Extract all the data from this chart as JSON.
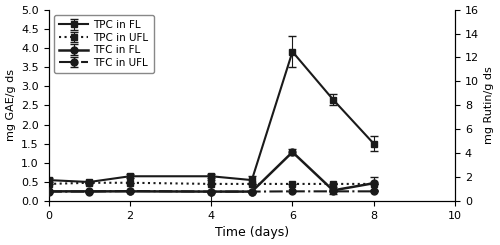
{
  "x_days": [
    0,
    1,
    2,
    4,
    5,
    6,
    7,
    8
  ],
  "tpc_fl": [
    0.55,
    0.5,
    0.65,
    0.65,
    0.55,
    3.9,
    2.65,
    1.5
  ],
  "tpc_fl_err": [
    0.05,
    0.02,
    0.05,
    0.05,
    0.1,
    0.4,
    0.15,
    0.2
  ],
  "tpc_ufl": [
    0.45,
    0.48,
    0.48,
    0.45,
    0.45,
    0.45,
    0.45,
    0.45
  ],
  "tpc_ufl_err": [
    0.0,
    0.0,
    0.0,
    0.0,
    0.0,
    0.0,
    0.0,
    0.0
  ],
  "tfc_fl_left": [
    0.82,
    0.82,
    0.82,
    0.8,
    0.8,
    4.1,
    0.9,
    1.5
  ],
  "tfc_fl_err_left": [
    0.0,
    0.0,
    0.0,
    1.0,
    0.05,
    0.25,
    0.3,
    0.55
  ],
  "tfc_ufl_left": [
    0.8,
    0.8,
    0.85,
    0.8,
    0.8,
    0.82,
    0.82,
    0.82
  ],
  "tfc_ufl_err_left": [
    0.0,
    0.0,
    0.0,
    0.0,
    0.0,
    0.0,
    0.0,
    0.0
  ],
  "xlim": [
    0,
    10
  ],
  "ylim_left": [
    0.0,
    5.0
  ],
  "ylim_right": [
    0,
    16
  ],
  "yticks_left": [
    0.0,
    0.5,
    1.0,
    1.5,
    2.0,
    2.5,
    3.0,
    3.5,
    4.0,
    4.5,
    5.0
  ],
  "yticks_right": [
    0,
    2,
    4,
    6,
    8,
    10,
    12,
    14,
    16
  ],
  "xticks": [
    0,
    2,
    4,
    6,
    8,
    10
  ],
  "xlabel": "Time (days)",
  "ylabel_left": "mg GAE/g ds",
  "ylabel_right": "mg Rutin/g ds",
  "legend_labels": [
    "TPC in FL",
    "TPC in UFL",
    "TFC in FL",
    "TFC in UFL"
  ],
  "line_color": "#1a1a1a",
  "markersize": 5,
  "linewidth": 1.5,
  "capsize": 3,
  "figsize": [
    5.0,
    2.45
  ],
  "dpi": 100
}
